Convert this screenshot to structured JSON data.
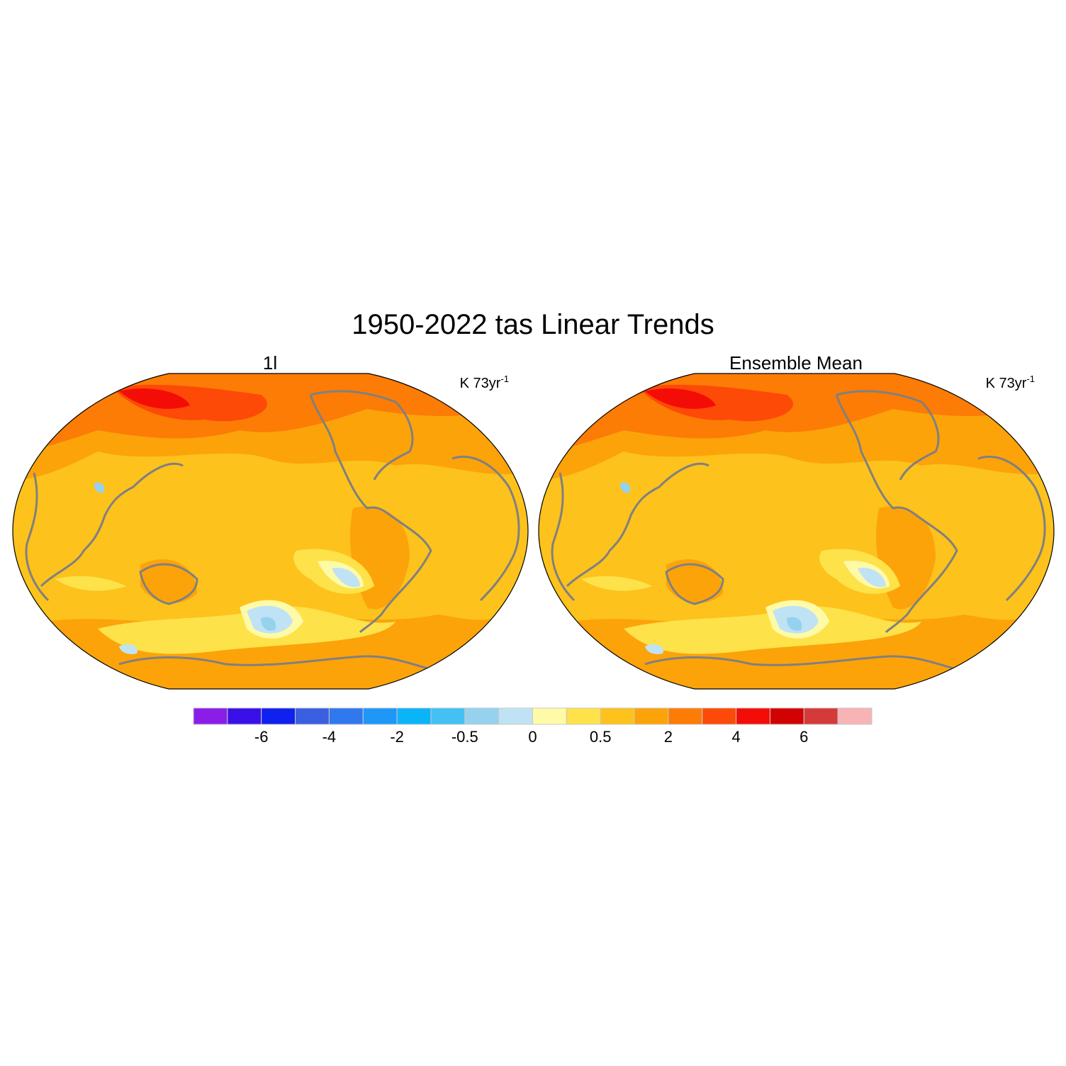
{
  "title": "1950-2022 tas Linear Trends",
  "panels": [
    {
      "title": "1l",
      "units": "K 73yr",
      "units_exponent": "-1"
    },
    {
      "title": "Ensemble Mean",
      "units": "K 73yr",
      "units_exponent": "-1"
    }
  ],
  "colorbar": {
    "colors": [
      "#8a1ee8",
      "#3a10e8",
      "#1020ee",
      "#3a5fe0",
      "#2f78ee",
      "#1e98f8",
      "#0ab4f8",
      "#44c0f4",
      "#96d2ee",
      "#bfe3f5",
      "#fffaa8",
      "#fde24a",
      "#fdc21c",
      "#fca30a",
      "#fc7c06",
      "#fd4a07",
      "#f40d06",
      "#d20202",
      "#d43a3a",
      "#f8b3b5"
    ],
    "labels": [
      null,
      -6,
      null,
      -4,
      null,
      -2,
      null,
      -0.5,
      null,
      0,
      null,
      0.5,
      null,
      2,
      null,
      4,
      null,
      6,
      null
    ]
  }
}
